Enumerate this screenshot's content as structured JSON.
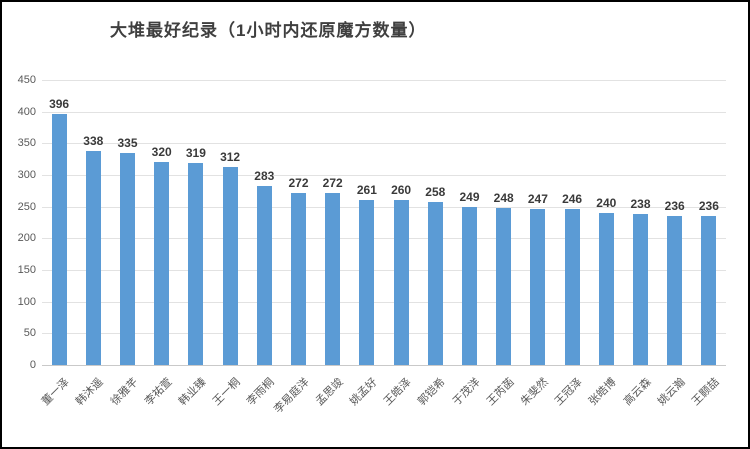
{
  "title": "大堆最好纪录（1小时内还原魔方数量）",
  "chart_data": {
    "type": "bar",
    "title": "大堆最好纪录（1小时内还原魔方数量）",
    "categories": [
      "董一泽",
      "韩沐遥",
      "徐雅芊",
      "李祐萱",
      "韩业臻",
      "王一桐",
      "李雨桐",
      "李易庭洋",
      "孟思竣",
      "姚孟好",
      "王皓泽",
      "郭铠希",
      "于茂洋",
      "王芮菡",
      "朱斐然",
      "王冠泽",
      "张皓博",
      "高云森",
      "姚云瀚",
      "王颢喆"
    ],
    "values": [
      396,
      338,
      335,
      320,
      319,
      312,
      283,
      272,
      272,
      261,
      260,
      258,
      249,
      248,
      247,
      246,
      240,
      238,
      236,
      236
    ],
    "xlabel": "",
    "ylabel": "",
    "ylim": [
      0,
      450
    ],
    "yticks": [
      0,
      50,
      100,
      150,
      200,
      250,
      300,
      350,
      400,
      450
    ],
    "grid": true,
    "legend": false,
    "bar_color": "#5b9bd5",
    "gridline_color": "#e2e2e2",
    "label_color": "#3a3a3a",
    "axis_text_color": "#595959"
  }
}
